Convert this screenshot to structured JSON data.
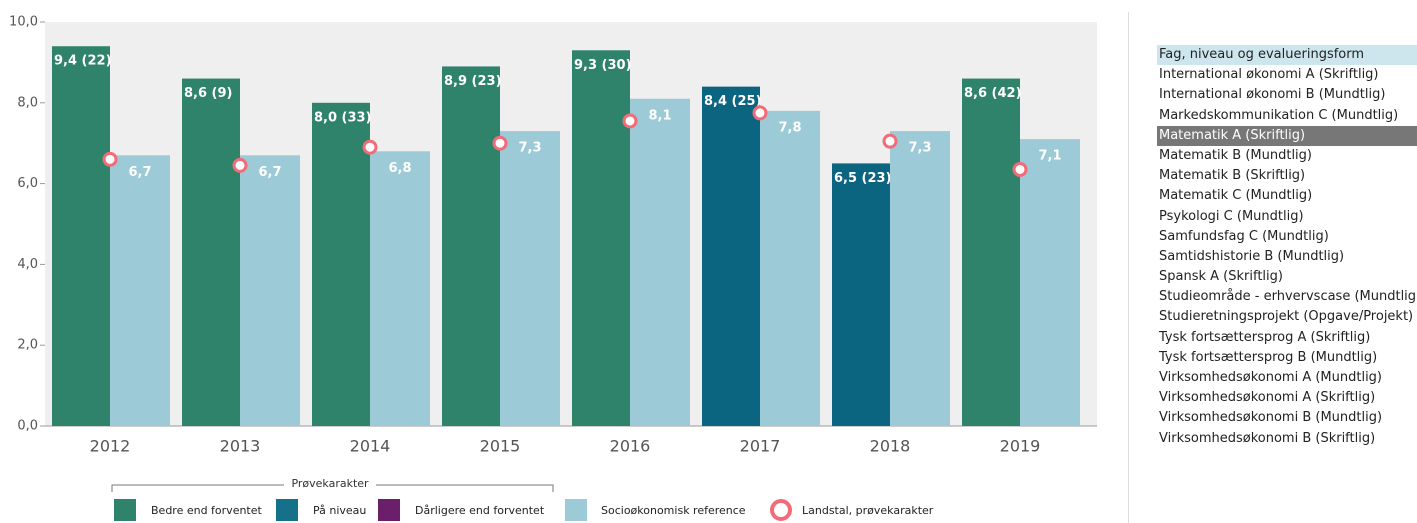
{
  "chart_data": {
    "type": "bar",
    "categories": [
      "2012",
      "2013",
      "2014",
      "2015",
      "2016",
      "2017",
      "2018",
      "2019"
    ],
    "values": [
      9.4,
      8.6,
      8.0,
      8.9,
      9.3,
      8.4,
      6.5,
      8.6
    ],
    "value_labels": [
      "9,4 (22)",
      "8,6 (9)",
      "8,0 (33)",
      "8,9 (23)",
      "9,3 (30)",
      "8,4 (25)",
      "6,5 (23)",
      "8,6 (42)"
    ],
    "colors": [
      "#2f836a",
      "#2f836a",
      "#2f836a",
      "#2f836a",
      "#2f836a",
      "#0b6480",
      "#0b6480",
      "#2f836a"
    ],
    "series": [
      {
        "name": "Socioøkonomisk reference",
        "color": "#9ccbd7",
        "values": [
          6.7,
          6.7,
          6.8,
          7.3,
          8.1,
          7.8,
          7.3,
          7.1
        ],
        "value_labels": [
          "6,7",
          "6,7",
          "6,8",
          "7,3",
          "8,1",
          "7,8",
          "7,3",
          "7,1"
        ]
      },
      {
        "name": "Landstal, prøvekarakter",
        "color": "#f26b78",
        "values": [
          6.6,
          6.45,
          6.9,
          7.0,
          7.55,
          7.75,
          7.05,
          6.35
        ]
      }
    ],
    "legend_group": {
      "title": "Prøvekarakter",
      "items": [
        {
          "name": "Bedre end forventet",
          "color": "#2f836a"
        },
        {
          "name": "På niveau",
          "color": "#15708a"
        },
        {
          "name": "Dårligere end forventet",
          "color": "#6b1f6b"
        }
      ]
    },
    "ylim": [
      0,
      10
    ],
    "yticks": [
      {
        "value": 0,
        "label": "0,0"
      },
      {
        "value": 2,
        "label": "2,0"
      },
      {
        "value": 4,
        "label": "4,0"
      },
      {
        "value": 6,
        "label": "6,0"
      },
      {
        "value": 8,
        "label": "8,0"
      },
      {
        "value": 10,
        "label": "10,0"
      }
    ]
  },
  "list": {
    "title": "Fag, niveau og evalueringsform",
    "selected": 3,
    "items": [
      "International økonomi A (Skriftlig)",
      "International økonomi B (Mundtlig)",
      "Markedskommunikation C (Mundtlig)",
      "Matematik A (Skriftlig)",
      "Matematik B (Mundtlig)",
      "Matematik B (Skriftlig)",
      "Matematik C (Mundtlig)",
      "Psykologi C (Mundtlig)",
      "Samfundsfag C (Mundtlig)",
      "Samtidshistorie B (Mundtlig)",
      "Spansk A (Skriftlig)",
      "Studieområde - erhvervscase (Mundtlig)",
      "Studieretningsprojekt (Opgave/Projekt)",
      "Tysk fortsættersprog A (Skriftlig)",
      "Tysk fortsættersprog B (Mundtlig)",
      "Virksomhedsøkonomi A (Mundtlig)",
      "Virksomhedsøkonomi A (Skriftlig)",
      "Virksomhedsøkonomi B (Mundtlig)",
      "Virksomhedsøkonomi B (Skriftlig)"
    ]
  }
}
